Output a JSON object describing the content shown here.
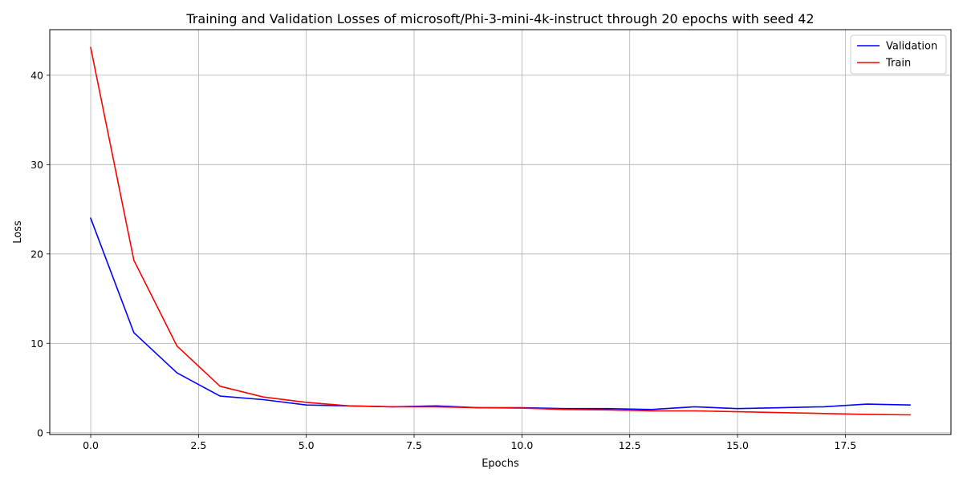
{
  "chart_data": {
    "type": "line",
    "title": "Training and Validation Losses of microsoft/Phi-3-mini-4k-instruct through 20 epochs with seed 42",
    "xlabel": "Epochs",
    "ylabel": "Loss",
    "xlim": [
      -0.95,
      19.95
    ],
    "ylim": [
      -0.2,
      45.1
    ],
    "x_ticks": [
      0.0,
      2.5,
      5.0,
      7.5,
      10.0,
      12.5,
      15.0,
      17.5
    ],
    "x_tick_labels": [
      "0.0",
      "2.5",
      "5.0",
      "7.5",
      "10.0",
      "12.5",
      "15.0",
      "17.5"
    ],
    "y_ticks": [
      0,
      10,
      20,
      30,
      40
    ],
    "y_tick_labels": [
      "0",
      "10",
      "20",
      "30",
      "40"
    ],
    "grid": true,
    "legend_position": "top-right",
    "x": [
      0,
      1,
      2,
      3,
      4,
      5,
      6,
      7,
      8,
      9,
      10,
      11,
      12,
      13,
      14,
      15,
      16,
      17,
      18,
      19
    ],
    "series": [
      {
        "name": "Validation",
        "color": "#0000ff",
        "values": [
          24.0,
          11.2,
          6.7,
          4.1,
          3.7,
          3.1,
          3.0,
          2.9,
          3.0,
          2.8,
          2.8,
          2.7,
          2.7,
          2.6,
          2.9,
          2.7,
          2.8,
          2.9,
          3.2,
          3.1
        ]
      },
      {
        "name": "Train",
        "color": "#ff0000",
        "values": [
          43.1,
          19.3,
          9.7,
          5.2,
          4.0,
          3.4,
          3.0,
          2.9,
          2.9,
          2.8,
          2.75,
          2.6,
          2.55,
          2.45,
          2.45,
          2.35,
          2.25,
          2.15,
          2.05,
          2.0
        ]
      }
    ]
  }
}
